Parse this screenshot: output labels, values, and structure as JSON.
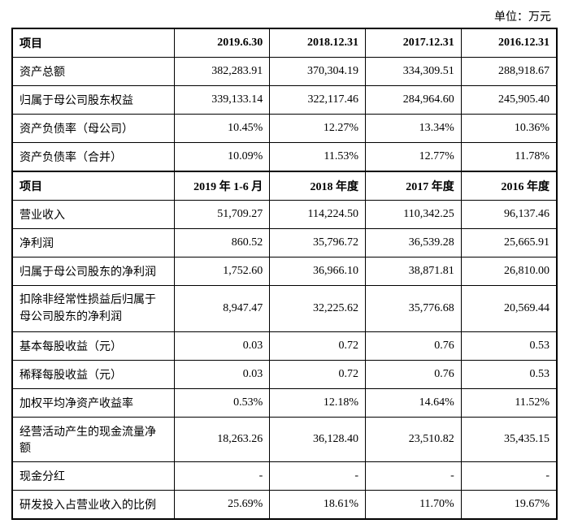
{
  "unit_label": "单位：万元",
  "section1": {
    "header": {
      "col0": "项目",
      "col1": "2019.6.30",
      "col2": "2018.12.31",
      "col3": "2017.12.31",
      "col4": "2016.12.31"
    },
    "rows": [
      {
        "label": "资产总额",
        "v1": "382,283.91",
        "v2": "370,304.19",
        "v3": "334,309.51",
        "v4": "288,918.67"
      },
      {
        "label": "归属于母公司股东权益",
        "v1": "339,133.14",
        "v2": "322,117.46",
        "v3": "284,964.60",
        "v4": "245,905.40"
      },
      {
        "label": "资产负债率（母公司）",
        "v1": "10.45%",
        "v2": "12.27%",
        "v3": "13.34%",
        "v4": "10.36%"
      },
      {
        "label": "资产负债率（合并）",
        "v1": "10.09%",
        "v2": "11.53%",
        "v3": "12.77%",
        "v4": "11.78%"
      }
    ]
  },
  "section2": {
    "header": {
      "col0": "项目",
      "col1": "2019 年 1-6 月",
      "col2": "2018 年度",
      "col3": "2017 年度",
      "col4": "2016 年度"
    },
    "rows": [
      {
        "label": "营业收入",
        "v1": "51,709.27",
        "v2": "114,224.50",
        "v3": "110,342.25",
        "v4": "96,137.46"
      },
      {
        "label": "净利润",
        "v1": "860.52",
        "v2": "35,796.72",
        "v3": "36,539.28",
        "v4": "25,665.91"
      },
      {
        "label": "归属于母公司股东的净利润",
        "v1": "1,752.60",
        "v2": "36,966.10",
        "v3": "38,871.81",
        "v4": "26,810.00"
      },
      {
        "label": "扣除非经常性损益后归属于母公司股东的净利润",
        "v1": "8,947.47",
        "v2": "32,225.62",
        "v3": "35,776.68",
        "v4": "20,569.44"
      },
      {
        "label": "基本每股收益（元）",
        "v1": "0.03",
        "v2": "0.72",
        "v3": "0.76",
        "v4": "0.53"
      },
      {
        "label": "稀释每股收益（元）",
        "v1": "0.03",
        "v2": "0.72",
        "v3": "0.76",
        "v4": "0.53"
      },
      {
        "label": "加权平均净资产收益率",
        "v1": "0.53%",
        "v2": "12.18%",
        "v3": "14.64%",
        "v4": "11.52%"
      },
      {
        "label": "经营活动产生的现金流量净额",
        "v1": "18,263.26",
        "v2": "36,128.40",
        "v3": "23,510.82",
        "v4": "35,435.15"
      },
      {
        "label": "现金分红",
        "v1": "-",
        "v2": "-",
        "v3": "-",
        "v4": "-"
      },
      {
        "label": "研发投入占营业收入的比例",
        "v1": "25.69%",
        "v2": "18.61%",
        "v3": "11.70%",
        "v4": "19.67%"
      }
    ]
  }
}
